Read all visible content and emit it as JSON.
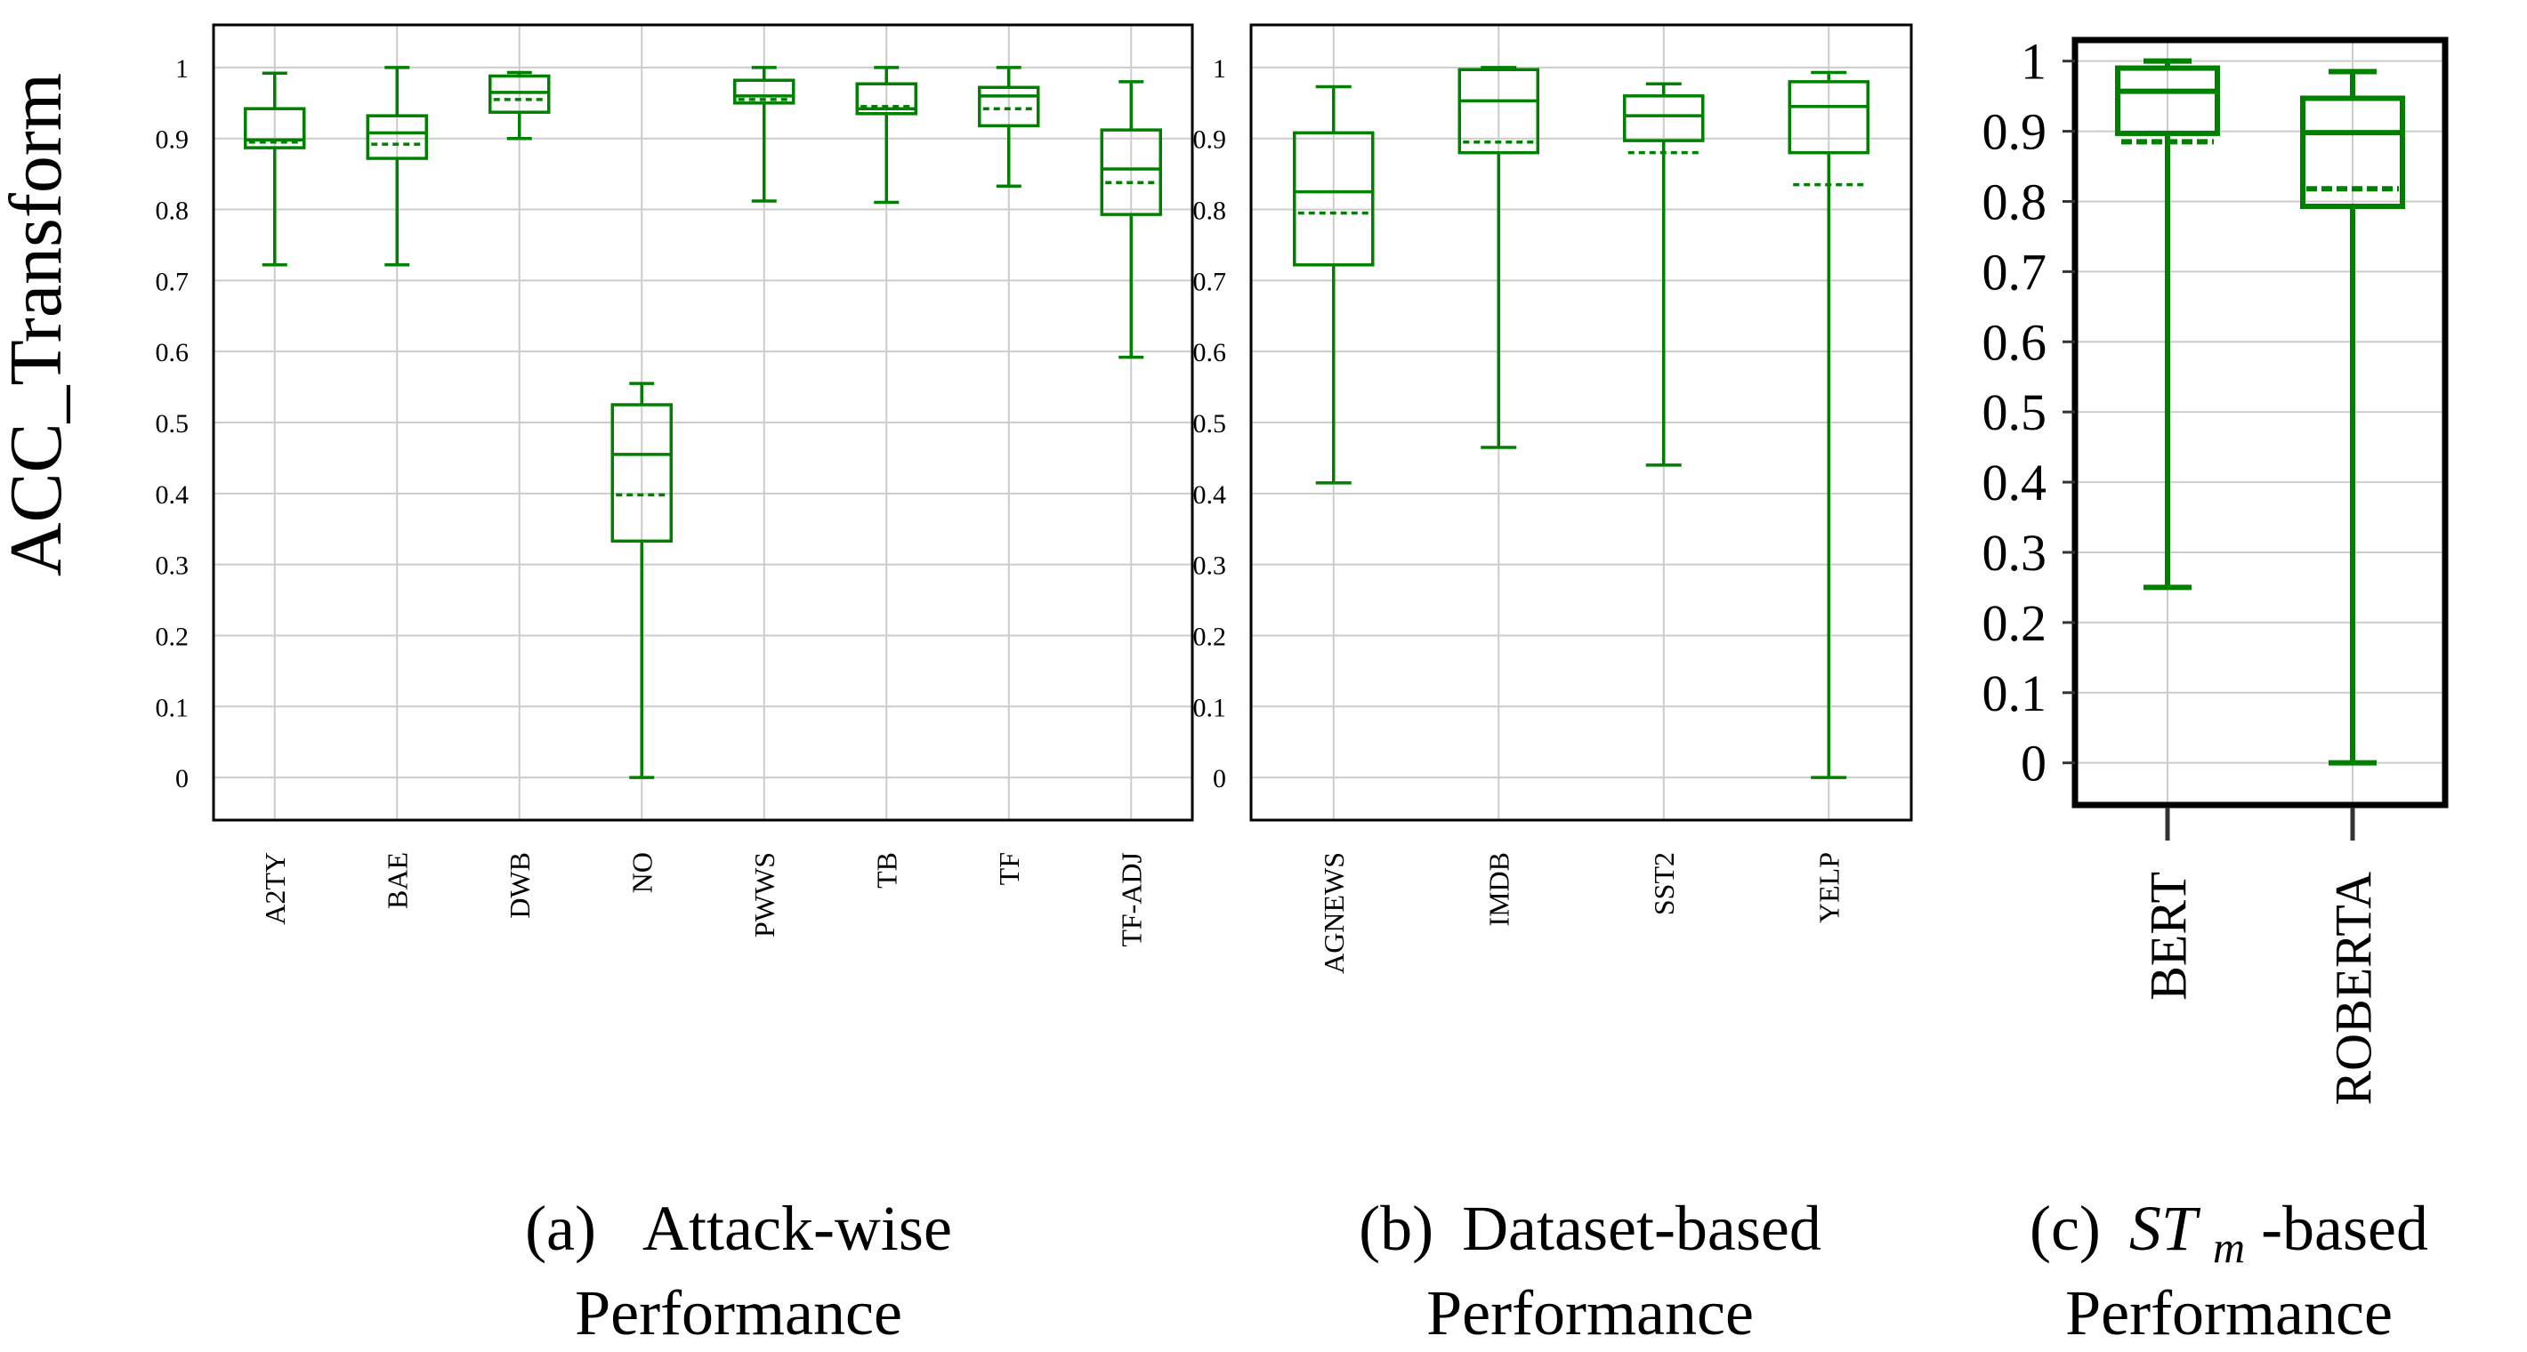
{
  "colors": {
    "box": "#008000",
    "grid": "#cccccc",
    "axis": "#000000",
    "background": "#ffffff"
  },
  "ylabel": "ACC_Transform",
  "chart_data": [
    {
      "type": "box",
      "panel": "a",
      "caption": {
        "prefix": "(a)",
        "line1": "Attack-wise",
        "line2": "Performance"
      },
      "ylim": [
        -0.06,
        1.06
      ],
      "yticks": [
        "0",
        "0.1",
        "0.2",
        "0.3",
        "0.4",
        "0.5",
        "0.6",
        "0.7",
        "0.8",
        "0.9",
        "1"
      ],
      "ytick_values": [
        0,
        0.1,
        0.2,
        0.3,
        0.4,
        0.5,
        0.6,
        0.7,
        0.8,
        0.9,
        1
      ],
      "grid": true,
      "categories": [
        "A2TY",
        "BAE",
        "DWB",
        "NO",
        "PWWS",
        "TB",
        "TF",
        "TF-ADJ"
      ],
      "boxes": [
        {
          "whislo": 0.722,
          "q1": 0.887,
          "median": 0.898,
          "mean": 0.895,
          "q3": 0.942,
          "whishi": 0.992
        },
        {
          "whislo": 0.722,
          "q1": 0.872,
          "median": 0.908,
          "mean": 0.892,
          "q3": 0.932,
          "whishi": 1.0
        },
        {
          "whislo": 0.9,
          "q1": 0.937,
          "median": 0.965,
          "mean": 0.955,
          "q3": 0.988,
          "whishi": 0.993
        },
        {
          "whislo": 0.0,
          "q1": 0.333,
          "median": 0.455,
          "mean": 0.398,
          "q3": 0.525,
          "whishi": 0.555
        },
        {
          "whislo": 0.812,
          "q1": 0.95,
          "median": 0.96,
          "mean": 0.955,
          "q3": 0.982,
          "whishi": 1.0
        },
        {
          "whislo": 0.81,
          "q1": 0.935,
          "median": 0.942,
          "mean": 0.945,
          "q3": 0.977,
          "whishi": 1.0
        },
        {
          "whislo": 0.833,
          "q1": 0.918,
          "median": 0.96,
          "mean": 0.942,
          "q3": 0.972,
          "whishi": 1.0
        },
        {
          "whislo": 0.592,
          "q1": 0.793,
          "median": 0.857,
          "mean": 0.838,
          "q3": 0.912,
          "whishi": 0.98
        }
      ]
    },
    {
      "type": "box",
      "panel": "b",
      "caption": {
        "prefix": "(b)",
        "line1": "Dataset-based",
        "line2": "Performance"
      },
      "ylim": [
        -0.06,
        1.06
      ],
      "yticks": [
        "0",
        "0.1",
        "0.2",
        "0.3",
        "0.4",
        "0.5",
        "0.6",
        "0.7",
        "0.8",
        "0.9",
        "1"
      ],
      "ytick_values": [
        0,
        0.1,
        0.2,
        0.3,
        0.4,
        0.5,
        0.6,
        0.7,
        0.8,
        0.9,
        1
      ],
      "grid": true,
      "categories": [
        "AGNEWS",
        "IMDB",
        "SST2",
        "YELP"
      ],
      "boxes": [
        {
          "whislo": 0.415,
          "q1": 0.722,
          "median": 0.825,
          "mean": 0.795,
          "q3": 0.908,
          "whishi": 0.973
        },
        {
          "whislo": 0.465,
          "q1": 0.88,
          "median": 0.953,
          "mean": 0.895,
          "q3": 0.997,
          "whishi": 1.0
        },
        {
          "whislo": 0.44,
          "q1": 0.897,
          "median": 0.932,
          "mean": 0.88,
          "q3": 0.96,
          "whishi": 0.977
        },
        {
          "whislo": 0.0,
          "q1": 0.88,
          "median": 0.945,
          "mean": 0.835,
          "q3": 0.98,
          "whishi": 0.993
        }
      ]
    },
    {
      "type": "box",
      "panel": "c",
      "caption": {
        "prefix": "(c)",
        "st": "ST",
        "sub": "m",
        "suffix": "-based",
        "line2": "Performance"
      },
      "ylim": [
        -0.06,
        1.03
      ],
      "yticks": [
        "0",
        "0.1",
        "0.2",
        "0.3",
        "0.4",
        "0.5",
        "0.6",
        "0.7",
        "0.8",
        "0.9",
        "1"
      ],
      "ytick_values": [
        0,
        0.1,
        0.2,
        0.3,
        0.4,
        0.5,
        0.6,
        0.7,
        0.8,
        0.9,
        1
      ],
      "grid": true,
      "categories": [
        "BERT",
        "ROBERTA"
      ],
      "boxes": [
        {
          "whislo": 0.25,
          "q1": 0.897,
          "median": 0.957,
          "mean": 0.885,
          "q3": 0.99,
          "whishi": 1.0
        },
        {
          "whislo": 0.0,
          "q1": 0.793,
          "median": 0.898,
          "mean": 0.818,
          "q3": 0.947,
          "whishi": 0.985
        }
      ]
    }
  ]
}
